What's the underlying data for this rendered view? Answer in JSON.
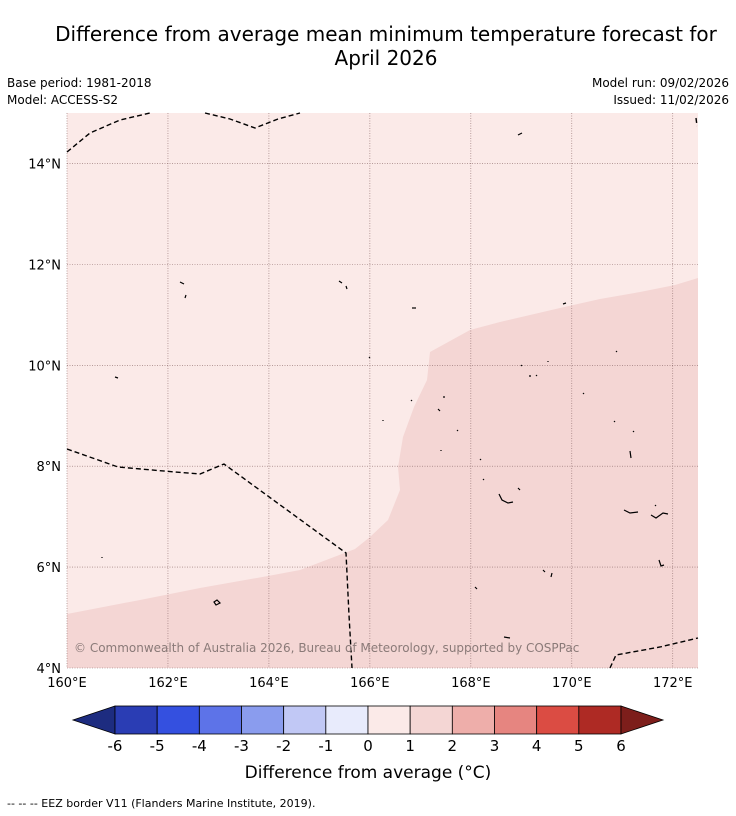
{
  "header": {
    "title_line1": "Difference from average mean minimum temperature forecast for",
    "title_line2": "April 2026",
    "base_period": "Base period: 1981-2018",
    "model": "Model: ACCESS-S2",
    "model_run": "Model run: 09/02/2026",
    "issued": "Issued: 11/02/2026"
  },
  "map": {
    "lat_labels": [
      "14°N",
      "12°N",
      "10°N",
      "8°N",
      "6°N",
      "4°N"
    ],
    "lon_labels": [
      "160°E",
      "162°E",
      "164°E",
      "166°E",
      "168°E",
      "170°E",
      "172°E"
    ],
    "lon_range": [
      160,
      172.5
    ],
    "lat_range": [
      4,
      15
    ],
    "grid": true,
    "copyright": "© Commonwealth of Australia 2026, Bureau of Meteorology, supported by COSPPac",
    "regions": [
      {
        "category": "0 to 1",
        "color": "#fbeae8"
      },
      {
        "category": "1 to 2",
        "color": "#f4d6d4"
      }
    ]
  },
  "colorbar": {
    "title": "Difference from average (°C)",
    "ticks": [
      "-6",
      "-5",
      "-4",
      "-3",
      "-2",
      "-1",
      "0",
      "1",
      "2",
      "3",
      "4",
      "5",
      "6"
    ],
    "colors": [
      "#1d2c80",
      "#2a3db4",
      "#3450e0",
      "#5d73e8",
      "#8a9cee",
      "#c1c8f5",
      "#e8ebfc",
      "#fbeae8",
      "#f4d6d4",
      "#eeaeaa",
      "#e68580",
      "#db4c43",
      "#ae2a24",
      "#7d1e1b"
    ]
  },
  "footnote": "--  --  -- EEZ border V11 (Flanders Marine Institute, 2019)."
}
